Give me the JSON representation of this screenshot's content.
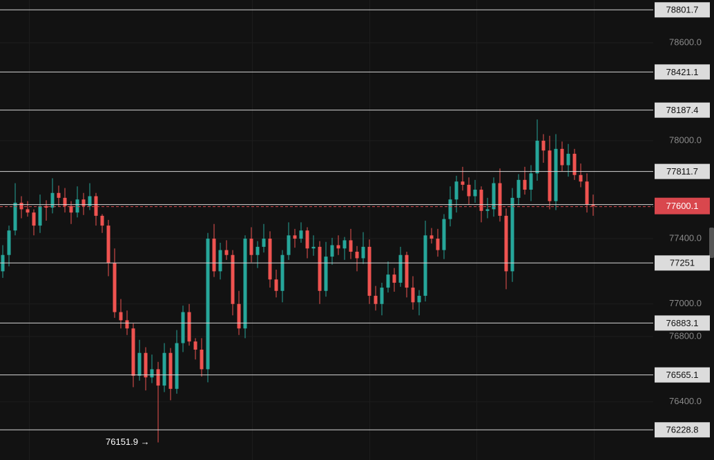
{
  "chart_data": {
    "type": "candlestick",
    "ylim": [
      76044,
      78862
    ],
    "yticks": [
      {
        "value": 78600,
        "label": "78600.0"
      },
      {
        "value": 78000,
        "label": "78000.0"
      },
      {
        "value": 77400,
        "label": "77400.0"
      },
      {
        "value": 77000,
        "label": "77000.0"
      },
      {
        "value": 76800,
        "label": "76800.0"
      },
      {
        "value": 76400,
        "label": "76400.0"
      }
    ],
    "up_color": "#26a69a",
    "down_color": "#ef5350",
    "open": [
      77200,
      77300,
      77450,
      77620,
      77580,
      77560,
      77480,
      77600,
      77590,
      77680,
      77650,
      77600,
      77560,
      77640,
      77600,
      77660,
      77540,
      77480,
      77250,
      76950,
      76900,
      76850,
      76560,
      76700,
      76550,
      76600,
      76500,
      76700,
      76480,
      76760,
      76950,
      76770,
      76720,
      76600,
      77400,
      77200,
      77330,
      77300,
      77000,
      76850,
      77400,
      77300,
      77350,
      77400,
      77150,
      77080,
      77300,
      77420,
      77400,
      77450,
      77340,
      77350,
      77080,
      77290,
      77360,
      77340,
      77390,
      77320,
      77280,
      77350,
      77050,
      77000,
      77100,
      77180,
      77130,
      77300,
      77100,
      77010,
      77050,
      77420,
      77400,
      77330,
      77520,
      77640,
      77750,
      77730,
      77660,
      77700,
      77570,
      77580,
      77740,
      77540,
      77200,
      77650,
      77760,
      77700,
      77800,
      78000,
      77940,
      77630,
      77950,
      77850,
      77920,
      77790,
      77750,
      77610
    ],
    "high": [
      77360,
      77480,
      77740,
      77660,
      77630,
      77580,
      77670,
      77635,
      77770,
      77725,
      77710,
      77630,
      77720,
      77680,
      77740,
      77680,
      77550,
      77515,
      77340,
      77030,
      76960,
      76880,
      76780,
      76735,
      76690,
      76645,
      76760,
      76730,
      76840,
      76990,
      77000,
      76790,
      76790,
      77435,
      77490,
      77375,
      77390,
      77330,
      77080,
      77420,
      77470,
      77385,
      77490,
      77445,
      77210,
      77330,
      77500,
      77460,
      77500,
      77470,
      77420,
      77385,
      77380,
      77405,
      77420,
      77410,
      77460,
      77355,
      77440,
      77395,
      77110,
      77130,
      77260,
      77220,
      77350,
      77320,
      77170,
      77085,
      77510,
      77465,
      77460,
      77550,
      77720,
      77785,
      77840,
      77775,
      77760,
      77720,
      77650,
      77775,
      77830,
      77585,
      77710,
      77795,
      77840,
      77850,
      78130,
      78040,
      78030,
      78040,
      77995,
      77980,
      77950,
      77860,
      77800,
      77670
    ],
    "low": [
      77160,
      77230,
      77420,
      77525,
      77535,
      77420,
      77435,
      77510,
      77555,
      77600,
      77560,
      77490,
      77530,
      77545,
      77575,
      77480,
      77435,
      77170,
      76915,
      76850,
      76810,
      76490,
      76530,
      76470,
      76515,
      76151.9,
      76460,
      76410,
      76450,
      76705,
      76745,
      76660,
      76555,
      76520,
      77165,
      77150,
      77270,
      76930,
      76810,
      76790,
      77255,
      77220,
      77315,
      77100,
      77040,
      77010,
      77270,
      77345,
      77375,
      77280,
      77295,
      77000,
      77045,
      77240,
      77300,
      77270,
      77275,
      77200,
      77245,
      77000,
      76960,
      76930,
      77070,
      77075,
      77105,
      77040,
      76965,
      76930,
      77015,
      77370,
      77290,
      77275,
      77475,
      77560,
      77695,
      77610,
      77620,
      77500,
      77525,
      77535,
      77505,
      77090,
      77135,
      77605,
      77670,
      77630,
      77755,
      77865,
      77580,
      77575,
      77810,
      77780,
      77760,
      77715,
      77560,
      77540
    ],
    "close": [
      77300,
      77450,
      77620,
      77580,
      77560,
      77480,
      77600,
      77590,
      77680,
      77650,
      77600,
      77560,
      77640,
      77600,
      77660,
      77540,
      77480,
      77250,
      76950,
      76900,
      76850,
      76560,
      76700,
      76550,
      76600,
      76500,
      76700,
      76480,
      76760,
      76950,
      76770,
      76720,
      76600,
      77400,
      77200,
      77330,
      77300,
      77000,
      76850,
      77400,
      77300,
      77350,
      77400,
      77150,
      77080,
      77300,
      77420,
      77400,
      77450,
      77340,
      77350,
      77080,
      77290,
      77360,
      77340,
      77390,
      77320,
      77280,
      77350,
      77050,
      77000,
      77100,
      77180,
      77130,
      77300,
      77100,
      77010,
      77050,
      77420,
      77400,
      77330,
      77520,
      77640,
      77750,
      77730,
      77660,
      77700,
      77570,
      77580,
      77740,
      77540,
      77200,
      77650,
      77760,
      77700,
      77800,
      78000,
      77940,
      77630,
      77950,
      77850,
      77920,
      77790,
      77750,
      77610,
      77600.1
    ],
    "price_lines": [
      78801.7,
      78421.1,
      78187.4,
      77811.7,
      77251.0,
      76883.1,
      76565.1,
      76228.8
    ],
    "current_price": 77600.1,
    "current_color": "#d9474d",
    "low_marker": {
      "value": 76151.9,
      "label": "76151.9 →"
    }
  }
}
